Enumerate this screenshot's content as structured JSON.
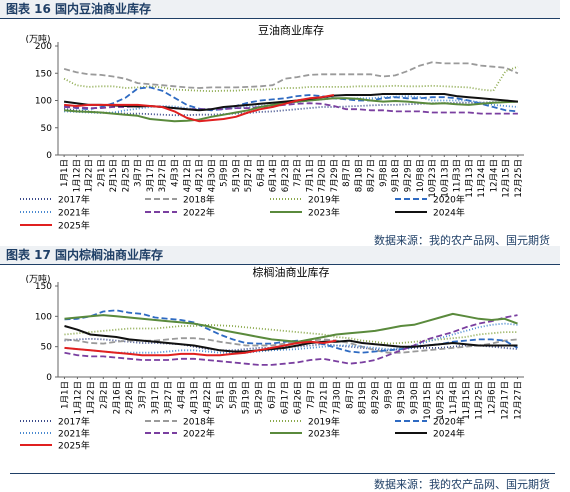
{
  "figures": [
    {
      "caption": "图表 16 国内豆油商业库存",
      "source": "数据来源：我的农产品网、国元期货"
    },
    {
      "caption": "图表 17 国内棕榈油商业库存",
      "source": "数据来源：我的农产品网、国元期货"
    }
  ],
  "chart_data": [
    {
      "type": "line",
      "title": "豆油商业库存",
      "ylabel": "(万吨)",
      "ylim": [
        0,
        200
      ],
      "yticks": [
        0,
        50,
        100,
        150,
        200
      ],
      "x": [
        "1月1日",
        "1月12日",
        "1月22日",
        "2月1日",
        "2月15日",
        "2月25日",
        "3月7日",
        "3月17日",
        "3月27日",
        "4月3日",
        "4月12日",
        "4月21日",
        "4月30日",
        "5月9日",
        "5月19日",
        "5月27日",
        "6月4日",
        "6月14日",
        "6月23日",
        "7月2日",
        "7月11日",
        "7月20日",
        "7月29日",
        "8月7日",
        "8月18日",
        "8月27日",
        "9月8日",
        "9月18日",
        "9月29日",
        "10月8日",
        "10月23日",
        "10月13日",
        "11月3日",
        "11月13日",
        "11月24日",
        "12月4日",
        "12月15日",
        "12月25日"
      ],
      "legend": [
        "2017年",
        "2018年",
        "2019年",
        "2020年",
        "2021年",
        "2022年",
        "2023年",
        "2024年",
        "2025年"
      ],
      "series": [
        {
          "name": "2017年",
          "color": "#3b4a8a",
          "dash": "1,2",
          "values": [
            85,
            82,
            80,
            78,
            77,
            76,
            76,
            75,
            74,
            73,
            73,
            74,
            74,
            75,
            76,
            77,
            79,
            80,
            82,
            84,
            86,
            88,
            88,
            89,
            90,
            91,
            92,
            92,
            93,
            94,
            95,
            95,
            96,
            96,
            96,
            97,
            97,
            98
          ]
        },
        {
          "name": "2018年",
          "color": "#9a9a9a",
          "dash": "6,3",
          "values": [
            158,
            152,
            148,
            147,
            144,
            140,
            132,
            130,
            128,
            126,
            124,
            123,
            124,
            124,
            124,
            125,
            126,
            128,
            140,
            143,
            147,
            148,
            148,
            148,
            148,
            148,
            144,
            146,
            154,
            164,
            170,
            168,
            168,
            168,
            164,
            162,
            160,
            150
          ]
        },
        {
          "name": "2019年",
          "color": "#8aa84a",
          "dash": "1,2",
          "values": [
            140,
            128,
            125,
            126,
            126,
            123,
            124,
            126,
            124,
            120,
            119,
            118,
            117,
            118,
            118,
            120,
            120,
            121,
            123,
            123,
            125,
            125,
            125,
            125,
            126,
            126,
            126,
            127,
            126,
            126,
            127,
            126,
            125,
            124,
            120,
            118,
            154,
            162
          ]
        },
        {
          "name": "2020年",
          "color": "#2e6ac2",
          "dash": "6,3",
          "values": [
            90,
            86,
            84,
            88,
            95,
            105,
            122,
            124,
            118,
            105,
            92,
            85,
            82,
            84,
            90,
            96,
            100,
            102,
            104,
            108,
            110,
            108,
            104,
            102,
            100,
            100,
            104,
            106,
            104,
            104,
            106,
            106,
            104,
            100,
            94,
            88,
            82,
            80
          ]
        },
        {
          "name": "2021年",
          "color": "#4a8ad0",
          "dash": "1,2",
          "values": [
            80,
            79,
            78,
            77,
            78,
            82,
            85,
            88,
            90,
            89,
            86,
            84,
            84,
            85,
            86,
            88,
            90,
            92,
            95,
            97,
            100,
            102,
            104,
            103,
            104,
            104,
            106,
            107,
            108,
            106,
            100,
            100,
            100,
            100,
            96,
            92,
            90,
            88
          ]
        },
        {
          "name": "2022年",
          "color": "#7a3fa0",
          "dash": "6,3",
          "values": [
            88,
            87,
            86,
            86,
            88,
            88,
            90,
            90,
            88,
            86,
            84,
            84,
            84,
            84,
            86,
            86,
            88,
            90,
            92,
            94,
            95,
            94,
            90,
            84,
            84,
            82,
            82,
            80,
            80,
            80,
            78,
            78,
            78,
            78,
            76,
            76,
            76,
            76
          ]
        },
        {
          "name": "2023年",
          "color": "#5a8a3c",
          "dash": "",
          "values": [
            82,
            80,
            79,
            78,
            76,
            74,
            72,
            66,
            64,
            62,
            63,
            65,
            70,
            74,
            78,
            82,
            88,
            92,
            96,
            98,
            100,
            102,
            104,
            104,
            103,
            100,
            98,
            99,
            98,
            96,
            94,
            95,
            93,
            92,
            94,
            96,
            97,
            98
          ]
        },
        {
          "name": "2024年",
          "color": "#111111",
          "dash": "",
          "values": [
            98,
            95,
            92,
            92,
            91,
            90,
            89,
            90,
            88,
            86,
            84,
            82,
            84,
            88,
            90,
            92,
            94,
            96,
            98,
            100,
            103,
            106,
            109,
            110,
            110,
            110,
            112,
            112,
            112,
            112,
            112,
            112,
            108,
            106,
            104,
            102,
            100,
            98
          ]
        },
        {
          "name": "2025年",
          "color": "#e02020",
          "dash": "",
          "values": [
            92,
            90,
            92,
            92,
            92,
            92,
            92,
            90,
            88,
            80,
            68,
            62,
            64,
            66,
            70,
            78,
            84,
            88,
            94,
            100,
            104,
            106,
            110,
            null,
            null,
            null,
            null,
            null,
            null,
            null,
            null,
            null,
            null,
            null,
            null,
            null,
            null,
            null
          ]
        }
      ]
    },
    {
      "type": "line",
      "title": "棕榈油商业库存",
      "ylabel": "(万吨)",
      "ylim": [
        0,
        150
      ],
      "yticks": [
        0,
        50,
        100,
        150
      ],
      "x": [
        "1月1日",
        "1月12日",
        "1月22日",
        "2月2日",
        "2月16日",
        "2月26日",
        "3月7日",
        "3月17日",
        "3月27日",
        "4月4日",
        "4月13日",
        "4月22日",
        "5月1日",
        "5月9日",
        "5月19日",
        "5月29日",
        "6月7日",
        "6月17日",
        "6月26日",
        "7月7日",
        "7月21日",
        "7月30日",
        "8月7日",
        "8月19日",
        "8月29日",
        "9月9日",
        "9月19日",
        "9月30日",
        "10月15日",
        "10月25日",
        "11月4日",
        "11月15日",
        "11月25日",
        "12月6日",
        "12月17日",
        "12月27日"
      ],
      "legend": [
        "2017年",
        "2018年",
        "2019年",
        "2020年",
        "2021年",
        "2022年",
        "2023年",
        "2024年",
        "2025年"
      ],
      "series": [
        {
          "name": "2017年",
          "color": "#3b4a8a",
          "dash": "1,2",
          "values": [
            60,
            62,
            63,
            62,
            60,
            58,
            56,
            56,
            55,
            54,
            50,
            46,
            44,
            44,
            46,
            48,
            48,
            50,
            50,
            52,
            54,
            52,
            50,
            48,
            46,
            44,
            46,
            48,
            48,
            48,
            50,
            52,
            52,
            50,
            48,
            46
          ]
        },
        {
          "name": "2018年",
          "color": "#9a9a9a",
          "dash": "6,3",
          "values": [
            62,
            60,
            56,
            55,
            58,
            60,
            60,
            60,
            62,
            64,
            64,
            62,
            58,
            55,
            52,
            52,
            52,
            55,
            58,
            60,
            62,
            60,
            56,
            50,
            44,
            40,
            40,
            42,
            44,
            46,
            48,
            50,
            52,
            55,
            60,
            62
          ]
        },
        {
          "name": "2019年",
          "color": "#8aa84a",
          "dash": "1,2",
          "values": [
            70,
            72,
            74,
            76,
            78,
            80,
            80,
            80,
            82,
            84,
            84,
            86,
            85,
            84,
            82,
            80,
            78,
            76,
            74,
            72,
            70,
            66,
            64,
            60,
            58,
            55,
            56,
            58,
            60,
            62,
            64,
            66,
            70,
            72,
            74,
            74
          ]
        },
        {
          "name": "2020年",
          "color": "#2e6ac2",
          "dash": "6,3",
          "values": [
            95,
            96,
            100,
            108,
            110,
            106,
            104,
            98,
            96,
            94,
            90,
            80,
            70,
            62,
            56,
            55,
            55,
            58,
            60,
            58,
            54,
            48,
            42,
            40,
            42,
            44,
            46,
            50,
            52,
            54,
            58,
            60,
            62,
            62,
            60,
            48
          ]
        },
        {
          "name": "2021年",
          "color": "#4a8ad0",
          "dash": "1,2",
          "values": [
            48,
            46,
            44,
            42,
            40,
            40,
            40,
            40,
            42,
            44,
            44,
            42,
            40,
            40,
            40,
            42,
            44,
            45,
            46,
            48,
            50,
            52,
            52,
            50,
            48,
            46,
            48,
            52,
            58,
            64,
            70,
            76,
            82,
            86,
            88,
            86
          ]
        },
        {
          "name": "2022年",
          "color": "#7a3fa0",
          "dash": "6,3",
          "values": [
            40,
            36,
            34,
            34,
            32,
            30,
            28,
            28,
            28,
            30,
            30,
            28,
            26,
            24,
            22,
            20,
            20,
            22,
            24,
            28,
            30,
            26,
            22,
            24,
            28,
            36,
            44,
            52,
            62,
            68,
            74,
            82,
            88,
            92,
            98,
            102
          ]
        },
        {
          "name": "2023年",
          "color": "#5a8a3c",
          "dash": "",
          "values": [
            96,
            98,
            100,
            102,
            100,
            98,
            96,
            94,
            92,
            90,
            88,
            84,
            78,
            74,
            70,
            66,
            62,
            60,
            58,
            62,
            66,
            70,
            72,
            74,
            76,
            80,
            84,
            86,
            92,
            98,
            104,
            100,
            96,
            94,
            96,
            88
          ]
        },
        {
          "name": "2024年",
          "color": "#111111",
          "dash": "",
          "values": [
            84,
            78,
            70,
            68,
            66,
            62,
            60,
            58,
            56,
            54,
            52,
            48,
            44,
            42,
            42,
            44,
            46,
            48,
            52,
            56,
            58,
            58,
            60,
            56,
            54,
            52,
            50,
            50,
            52,
            54,
            56,
            54,
            52,
            52,
            52,
            52
          ]
        },
        {
          "name": "2025年",
          "color": "#e02020",
          "dash": "",
          "values": [
            48,
            46,
            44,
            42,
            40,
            38,
            36,
            36,
            36,
            38,
            38,
            36,
            36,
            38,
            40,
            44,
            48,
            52,
            56,
            58,
            56,
            60,
            null,
            null,
            null,
            null,
            null,
            null,
            null,
            null,
            null,
            null,
            null,
            null,
            null,
            null
          ]
        }
      ]
    }
  ]
}
